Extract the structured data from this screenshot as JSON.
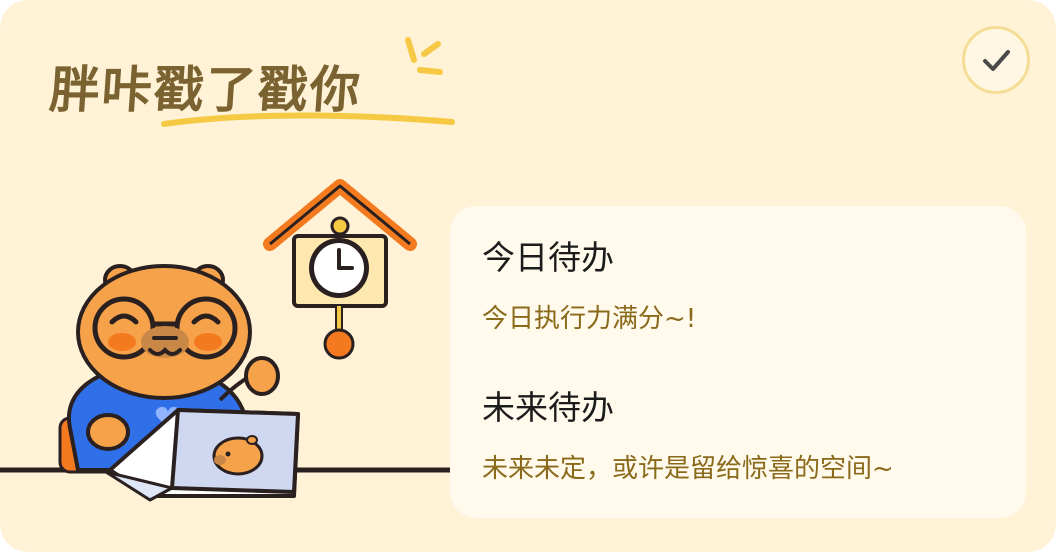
{
  "app": {
    "title": "胖咔戳了戳你"
  },
  "actions": {
    "confirm_icon": "checkmark-icon"
  },
  "todo": {
    "today": {
      "title": "今日待办",
      "subtitle": "今日执行力满分~!"
    },
    "future": {
      "title": "未来待办",
      "subtitle": "未来未定，或许是留给惊喜的空间~"
    }
  },
  "colors": {
    "background": "#fff2d6",
    "panel": "#fffaec",
    "title_brown": "#7a6231",
    "subtitle_gold": "#8a6a1a",
    "accent_yellow": "#f6c944",
    "clock_orange": "#f47a1f",
    "shirt_blue": "#2f6fe8",
    "capybara_orange": "#f6a24a"
  }
}
